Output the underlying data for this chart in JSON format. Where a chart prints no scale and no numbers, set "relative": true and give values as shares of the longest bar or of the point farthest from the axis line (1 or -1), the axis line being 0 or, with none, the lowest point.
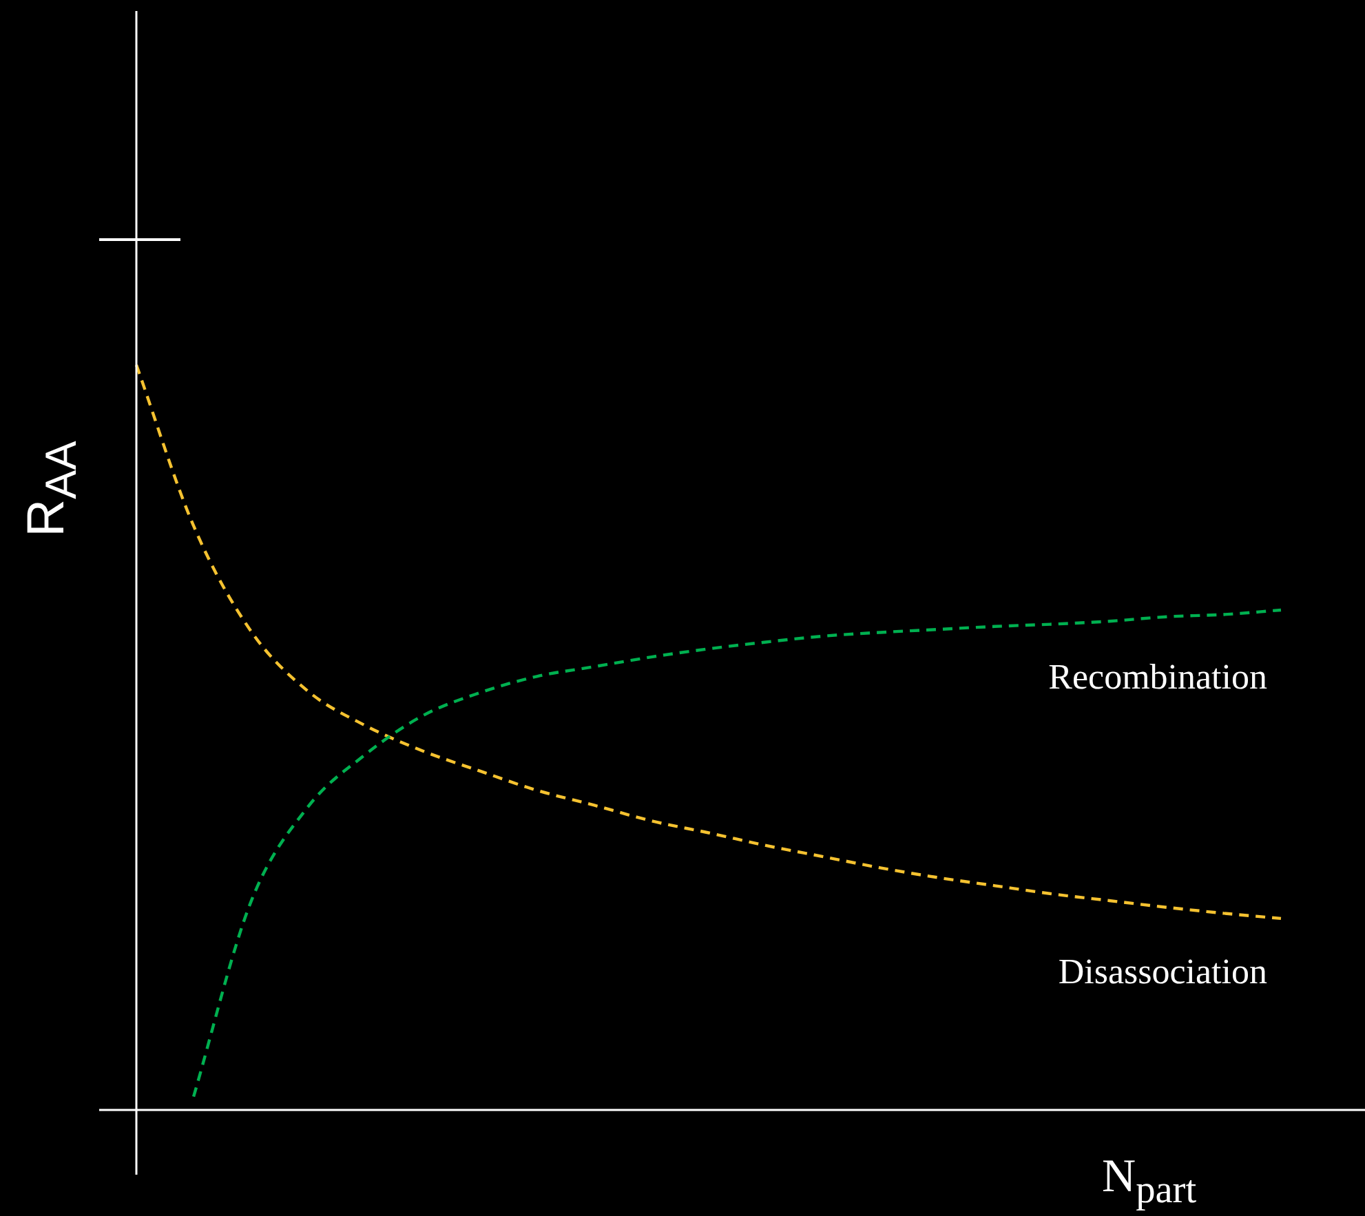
{
  "chart_data": {
    "type": "line",
    "relative": true,
    "xlabel": "N$_{part}$",
    "ylabel": "R$_{AA}$",
    "categories": [
      null,
      null,
      null,
      null,
      null,
      null,
      null,
      null,
      null,
      null,
      null,
      null,
      null,
      null,
      null,
      null,
      null,
      null,
      null,
      null,
      null
    ],
    "series": [
      {
        "name": "Recombination",
        "color": "#00b050",
        "values": [
          null,
          0.018,
          0.279,
          0.407,
          0.477,
          0.529,
          0.56,
          0.582,
          0.595,
          0.608,
          0.619,
          0.628,
          0.636,
          0.641,
          0.645,
          0.649,
          0.652,
          0.656,
          0.662,
          0.665,
          0.671
        ]
      },
      {
        "name": "Disassociation",
        "color": "#f5c230",
        "values": [
          1,
          0.784,
          0.643,
          0.562,
          0.516,
          0.482,
          0.455,
          0.429,
          0.409,
          0.388,
          0.372,
          0.355,
          0.34,
          0.325,
          0.312,
          0.301,
          0.29,
          0.281,
          0.272,
          0.264,
          0.257
        ]
      }
    ],
    "line_style": "dashed",
    "marker": "none",
    "legend": false
  }
}
